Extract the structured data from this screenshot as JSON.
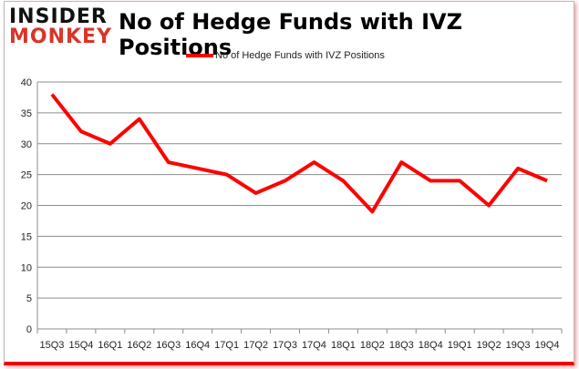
{
  "logo": {
    "line1": "INSIDER",
    "line2": "MONKEY"
  },
  "chart_data": {
    "type": "line",
    "title": "No of Hedge Funds with IVZ Positions",
    "xlabel": "",
    "ylabel": "",
    "categories": [
      "15Q3",
      "15Q4",
      "16Q1",
      "16Q2",
      "16Q3",
      "16Q4",
      "17Q1",
      "17Q2",
      "17Q3",
      "17Q4",
      "18Q1",
      "18Q2",
      "18Q3",
      "18Q4",
      "19Q1",
      "19Q2",
      "19Q3",
      "19Q4"
    ],
    "series": [
      {
        "name": "No of Hedge Funds with IVZ Positions",
        "color": "#ff0000",
        "values": [
          38,
          32,
          30,
          34,
          27,
          26,
          25,
          22,
          24,
          27,
          24,
          19,
          27,
          24,
          24,
          20,
          26,
          24
        ]
      }
    ],
    "ylim": [
      0,
      40
    ],
    "yticks": [
      0,
      5,
      10,
      15,
      20,
      25,
      30,
      35,
      40
    ],
    "grid": true,
    "legend": "top"
  }
}
